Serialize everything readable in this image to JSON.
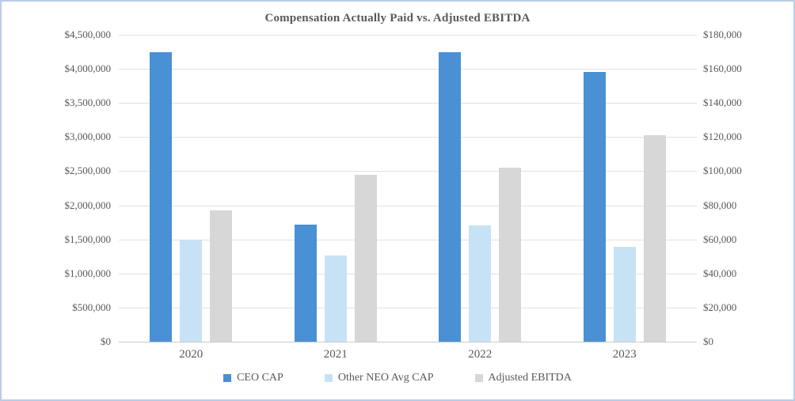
{
  "window": {
    "border_color": "#b9cde8",
    "background": "#ffffff"
  },
  "chart_data": {
    "type": "bar",
    "title": "Compensation Actually Paid vs. Adjusted EBITDA",
    "categories": [
      "2020",
      "2021",
      "2022",
      "2023"
    ],
    "series": [
      {
        "name": "CEO CAP",
        "axis": "left",
        "color": "#4a90d5",
        "values": [
          4250000,
          1720000,
          4240000,
          3950000
        ]
      },
      {
        "name": "Other NEO Avg CAP",
        "axis": "left",
        "color": "#c8e2f5",
        "values": [
          1500000,
          1260000,
          1710000,
          1390000
        ]
      },
      {
        "name": "Adjusted EBITDA",
        "axis": "right",
        "color": "#d7d7d7",
        "values": [
          77000,
          98000,
          102000,
          121000
        ]
      }
    ],
    "left_axis": {
      "min": 0,
      "max": 4500000,
      "step": 500000,
      "tick_labels": [
        "$4,500,000",
        "$4,000,000",
        "$3,500,000",
        "$3,000,000",
        "$2,500,000",
        "$2,000,000",
        "$1,500,000",
        "$1,000,000",
        "$500,000",
        "$0"
      ]
    },
    "right_axis": {
      "min": 0,
      "max": 180000,
      "step": 20000,
      "tick_labels": [
        "$180,000",
        "$160,000",
        "$140,000",
        "$120,000",
        "$100,000",
        "$80,000",
        "$60,000",
        "$40,000",
        "$20,000",
        "$0"
      ]
    },
    "grid": true,
    "legend_position": "bottom",
    "colors": {
      "gridline": "#e2e2e2",
      "axis_line": "#c9c9c9",
      "text": "#595959"
    }
  }
}
